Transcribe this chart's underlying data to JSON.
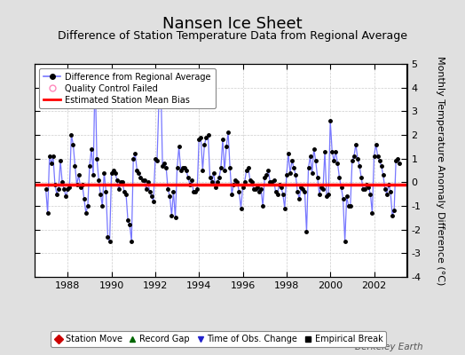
{
  "title": "Nansen Ice Sheet",
  "subtitle": "Difference of Station Temperature Data from Regional Average",
  "ylabel_right": "Monthly Temperature Anomaly Difference (°C)",
  "watermark": "Berkeley Earth",
  "ylim": [
    -4,
    5
  ],
  "xlim": [
    1986.5,
    2003.5
  ],
  "yticks": [
    -4,
    -3,
    -2,
    -1,
    0,
    1,
    2,
    3,
    4,
    5
  ],
  "xticks": [
    1988,
    1990,
    1992,
    1994,
    1996,
    1998,
    2000,
    2002
  ],
  "mean_bias": -0.1,
  "bg_color": "#e0e0e0",
  "plot_bg_color": "#ffffff",
  "line_color": "#7777ff",
  "marker_color": "#000000",
  "bias_color": "#ff0000",
  "title_fontsize": 13,
  "subtitle_fontsize": 9,
  "tick_fontsize": 8,
  "data": {
    "years": [
      1987.0,
      1987.083,
      1987.167,
      1987.25,
      1987.333,
      1987.417,
      1987.5,
      1987.583,
      1987.667,
      1987.75,
      1987.833,
      1987.917,
      1988.0,
      1988.083,
      1988.167,
      1988.25,
      1988.333,
      1988.417,
      1988.5,
      1988.583,
      1988.667,
      1988.75,
      1988.833,
      1988.917,
      1989.0,
      1989.083,
      1989.167,
      1989.25,
      1989.333,
      1989.417,
      1989.5,
      1989.583,
      1989.667,
      1989.75,
      1989.833,
      1989.917,
      1990.0,
      1990.083,
      1990.167,
      1990.25,
      1990.333,
      1990.417,
      1990.5,
      1990.583,
      1990.667,
      1990.75,
      1990.833,
      1990.917,
      1991.0,
      1991.083,
      1991.167,
      1991.25,
      1991.333,
      1991.417,
      1991.5,
      1991.583,
      1991.667,
      1991.75,
      1991.833,
      1991.917,
      1992.0,
      1992.083,
      1992.167,
      1992.25,
      1992.333,
      1992.417,
      1992.5,
      1992.583,
      1992.667,
      1992.75,
      1992.833,
      1992.917,
      1993.0,
      1993.083,
      1993.167,
      1993.25,
      1993.333,
      1993.417,
      1993.5,
      1993.583,
      1993.667,
      1993.75,
      1993.833,
      1993.917,
      1994.0,
      1994.083,
      1994.167,
      1994.25,
      1994.333,
      1994.417,
      1994.5,
      1994.583,
      1994.667,
      1994.75,
      1994.833,
      1994.917,
      1995.0,
      1995.083,
      1995.167,
      1995.25,
      1995.333,
      1995.417,
      1995.5,
      1995.583,
      1995.667,
      1995.75,
      1995.833,
      1995.917,
      1996.0,
      1996.083,
      1996.167,
      1996.25,
      1996.333,
      1996.417,
      1996.5,
      1996.583,
      1996.667,
      1996.75,
      1996.833,
      1996.917,
      1997.0,
      1997.083,
      1997.167,
      1997.25,
      1997.333,
      1997.417,
      1997.5,
      1997.583,
      1997.667,
      1997.75,
      1997.833,
      1997.917,
      1998.0,
      1998.083,
      1998.167,
      1998.25,
      1998.333,
      1998.417,
      1998.5,
      1998.583,
      1998.667,
      1998.75,
      1998.833,
      1998.917,
      1999.0,
      1999.083,
      1999.167,
      1999.25,
      1999.333,
      1999.417,
      1999.5,
      1999.583,
      1999.667,
      1999.75,
      1999.833,
      1999.917,
      2000.0,
      2000.083,
      2000.167,
      2000.25,
      2000.333,
      2000.417,
      2000.5,
      2000.583,
      2000.667,
      2000.75,
      2000.833,
      2000.917,
      2001.0,
      2001.083,
      2001.167,
      2001.25,
      2001.333,
      2001.417,
      2001.5,
      2001.583,
      2001.667,
      2001.75,
      2001.833,
      2001.917,
      2002.0,
      2002.083,
      2002.167,
      2002.25,
      2002.333,
      2002.417,
      2002.5,
      2002.583,
      2002.667,
      2002.75,
      2002.833,
      2002.917,
      2003.0,
      2003.083,
      2003.167
    ],
    "values": [
      -0.3,
      -1.3,
      1.1,
      0.8,
      1.1,
      -0.1,
      -0.5,
      -0.3,
      0.9,
      0.0,
      -0.3,
      -0.6,
      -0.3,
      -0.2,
      2.0,
      1.6,
      0.7,
      -0.1,
      0.3,
      -0.2,
      -0.1,
      -0.7,
      -1.3,
      -1.0,
      0.7,
      1.4,
      0.3,
      4.7,
      1.0,
      0.1,
      -0.5,
      -1.0,
      0.4,
      -0.4,
      -2.3,
      -2.5,
      0.4,
      0.5,
      0.4,
      0.1,
      -0.3,
      0.0,
      0.0,
      -0.4,
      -0.5,
      -1.6,
      -1.8,
      -2.5,
      1.0,
      1.2,
      0.5,
      0.4,
      0.2,
      0.1,
      0.1,
      -0.3,
      0.0,
      -0.4,
      -0.6,
      -0.8,
      1.0,
      0.9,
      3.4,
      4.5,
      0.7,
      0.8,
      0.6,
      -0.3,
      -0.6,
      -1.4,
      -0.4,
      -1.5,
      0.6,
      1.5,
      0.5,
      0.6,
      0.6,
      0.5,
      0.2,
      -0.1,
      0.1,
      -0.4,
      -0.4,
      -0.3,
      1.8,
      1.9,
      0.5,
      1.6,
      1.9,
      2.0,
      0.2,
      0.0,
      0.4,
      -0.2,
      0.0,
      0.2,
      0.6,
      1.8,
      0.5,
      1.5,
      2.1,
      0.6,
      -0.5,
      -0.1,
      0.1,
      0.0,
      -0.4,
      -1.1,
      -0.2,
      0.0,
      0.5,
      0.6,
      0.1,
      0.0,
      -0.3,
      -0.3,
      -0.2,
      -0.4,
      -0.3,
      -1.0,
      0.2,
      0.3,
      0.5,
      0.0,
      0.0,
      0.1,
      -0.4,
      -0.5,
      -0.1,
      -0.2,
      -0.5,
      -1.1,
      0.3,
      1.2,
      0.4,
      0.9,
      0.6,
      0.3,
      -0.4,
      -0.7,
      -0.2,
      -0.3,
      -0.4,
      -2.1,
      0.6,
      1.1,
      0.4,
      1.4,
      0.9,
      0.2,
      -0.5,
      -0.2,
      -0.3,
      1.3,
      -0.6,
      -0.5,
      2.6,
      1.3,
      0.9,
      1.3,
      0.8,
      0.2,
      -0.2,
      -0.7,
      -2.5,
      -0.6,
      -1.0,
      -1.0,
      0.9,
      1.1,
      1.6,
      1.0,
      0.7,
      0.2,
      -0.3,
      -0.3,
      -0.1,
      -0.2,
      -0.5,
      -1.3,
      1.1,
      1.6,
      1.1,
      0.9,
      0.7,
      0.3,
      -0.3,
      -0.5,
      -0.1,
      -0.4,
      -1.4,
      -1.2,
      0.9,
      1.0,
      0.8
    ]
  }
}
